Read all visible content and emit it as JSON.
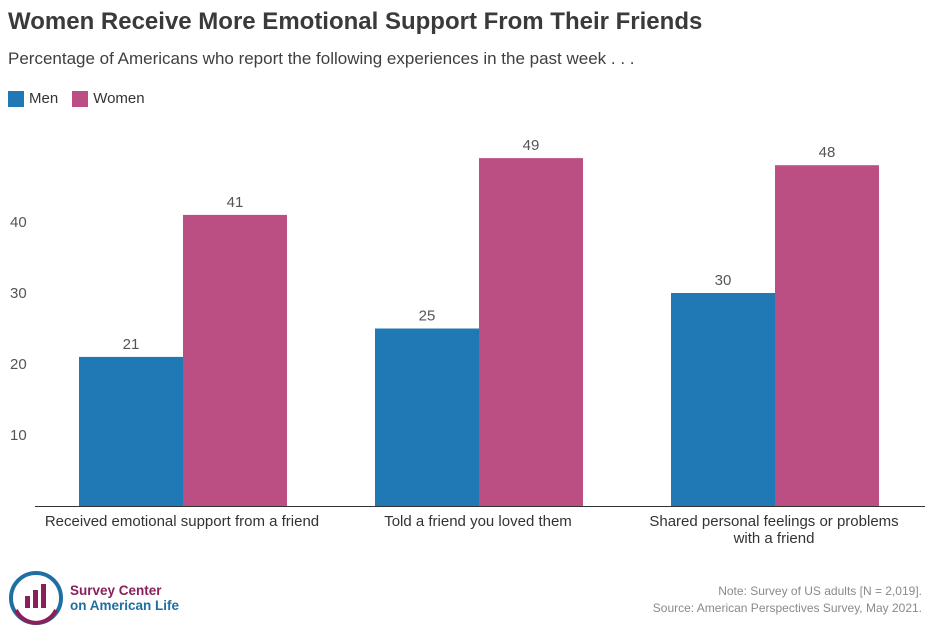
{
  "title": "Women Receive More Emotional Support From Their Friends",
  "subtitle": "Percentage of Americans who report the following experiences in the past week . . .",
  "colors": {
    "men": "#2078b4",
    "women": "#bb4f83"
  },
  "chart_data": {
    "type": "bar",
    "categories": [
      "Received emotional support from a friend",
      "Told a friend you loved them",
      "Shared personal feelings or problems with a friend"
    ],
    "series": [
      {
        "name": "Men",
        "values": [
          21,
          25,
          30
        ]
      },
      {
        "name": "Women",
        "values": [
          41,
          49,
          48
        ]
      }
    ],
    "yticks": [
      10,
      20,
      30,
      40
    ],
    "ylim": [
      0,
      50
    ],
    "legend": "top-left"
  },
  "logo": {
    "line1": "Survey Center",
    "line2": "on American Life"
  },
  "note": "Note: Survey of US adults [N = 2,019].",
  "source": "Source: American Perspectives Survey, May 2021."
}
